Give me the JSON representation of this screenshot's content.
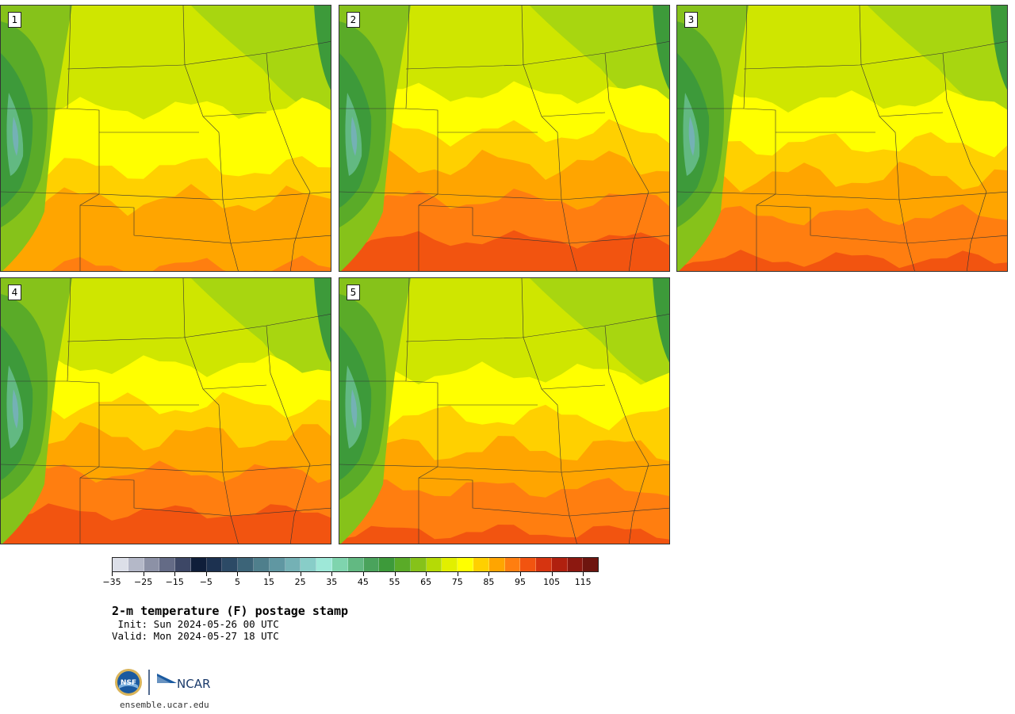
{
  "panels": [
    {
      "label": "1",
      "variant": 0
    },
    {
      "label": "2",
      "variant": 2
    },
    {
      "label": "3",
      "variant": 1
    },
    {
      "label": "4",
      "variant": 2
    },
    {
      "label": "5",
      "variant": 1
    }
  ],
  "colorbar": {
    "colors": [
      "#dcdfe8",
      "#b4b8c8",
      "#8c91a6",
      "#646b86",
      "#3d4766",
      "#0f1e3a",
      "#1c3150",
      "#2c4a66",
      "#3c6478",
      "#4f7f8c",
      "#6097a2",
      "#74b1b5",
      "#88cdc8",
      "#9ee8d8",
      "#7fd4ae",
      "#62b982",
      "#4aa35c",
      "#3d9a3a",
      "#5aab28",
      "#86c21a",
      "#b5da06",
      "#e2ef00",
      "#ffff00",
      "#ffd000",
      "#ffa500",
      "#ff7e10",
      "#f25410",
      "#d63410",
      "#b0200f",
      "#8c1810",
      "#6e150f"
    ],
    "tick_labels": [
      "−35",
      "−25",
      "−15",
      "−5",
      "5",
      "15",
      "25",
      "35",
      "45",
      "55",
      "65",
      "75",
      "85",
      "95",
      "105",
      "115"
    ]
  },
  "title": "2-m temperature (F) postage stamp",
  "init": " Init: Sun 2024-05-26 00 UTC",
  "valid": "Valid: Mon 2024-05-27 18 UTC",
  "logo": {
    "nsf": "NSF",
    "ncar": "NCAR"
  },
  "site": "ensemble.ucar.edu"
}
